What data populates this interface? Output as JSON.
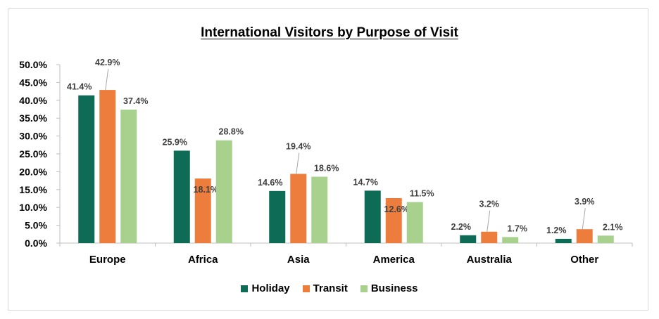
{
  "chart_data": {
    "type": "bar",
    "title": "International  Visitors by Purpose  of Visit",
    "categories": [
      "Europe",
      "Africa",
      "Asia",
      "America",
      "Australia",
      "Other"
    ],
    "series": [
      {
        "name": "Holiday",
        "color": "#0e6b55",
        "values": [
          41.4,
          25.9,
          14.6,
          14.7,
          2.2,
          1.2
        ],
        "labels": [
          "41.4%",
          "25.9%",
          "14.6%",
          "14.7%",
          "2.2%",
          "1.2%"
        ]
      },
      {
        "name": "Transit",
        "color": "#ed7d3c",
        "values": [
          42.9,
          18.1,
          19.4,
          12.6,
          3.2,
          3.9
        ],
        "labels": [
          "42.9%",
          "18.1%",
          "19.4%",
          "12.6%",
          "3.2%",
          "3.9%"
        ]
      },
      {
        "name": "Business",
        "color": "#a9d18e",
        "values": [
          37.4,
          28.8,
          18.6,
          11.5,
          1.7,
          2.1
        ],
        "labels": [
          "37.4%",
          "28.8%",
          "18.6%",
          "11.5%",
          "1.7%",
          "2.1%"
        ]
      }
    ],
    "ylim": [
      0,
      50
    ],
    "yticks": [
      "0.0%",
      "5.0%",
      "10.0%",
      "15.0%",
      "20.0%",
      "25.0%",
      "30.0%",
      "35.0%",
      "40.0%",
      "45.0%",
      "50.0%"
    ],
    "xlabel": "",
    "ylabel": "",
    "grid": false,
    "legend_position": "bottom"
  }
}
